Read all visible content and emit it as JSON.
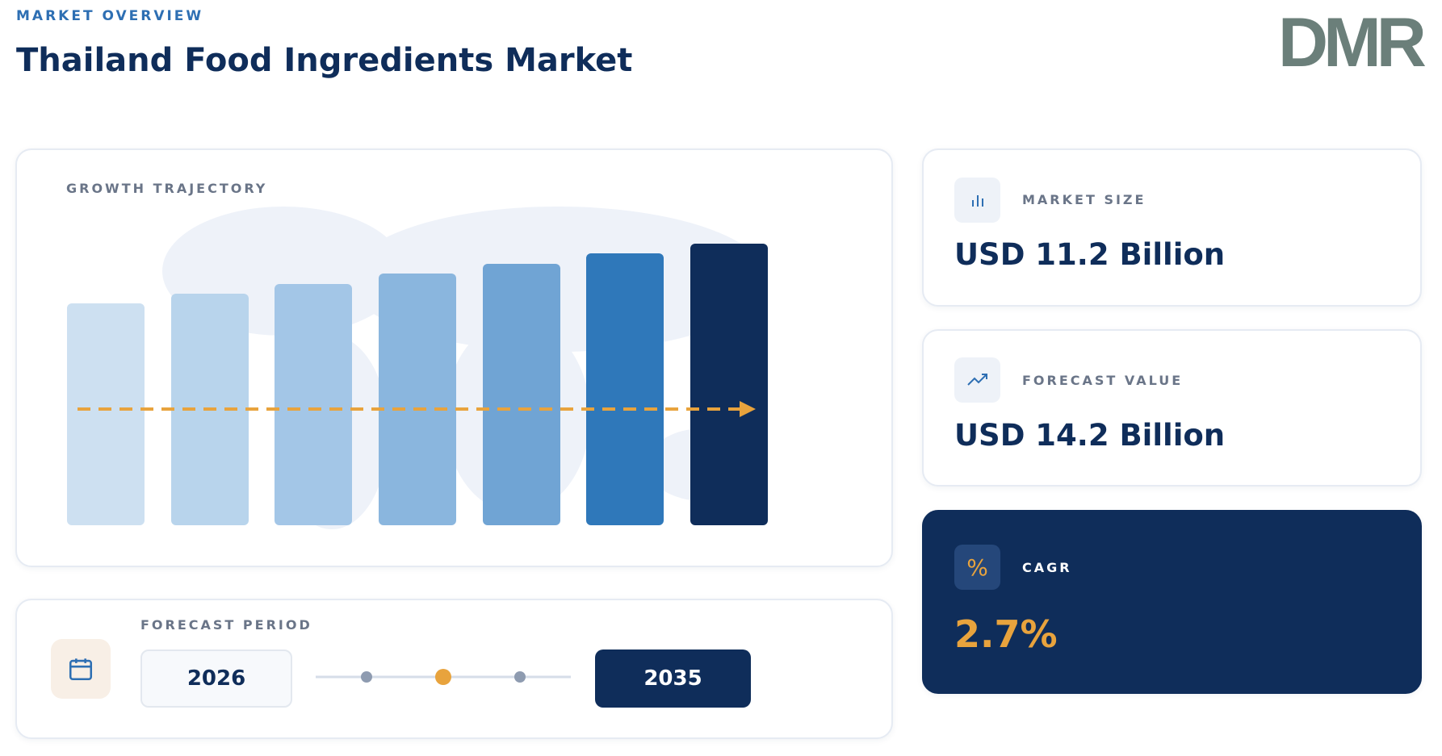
{
  "header": {
    "eyebrow": "MARKET OVERVIEW",
    "title": "Thailand Food Ingredients Market",
    "logo": "DMR"
  },
  "growth": {
    "label": "GROWTH TRAJECTORY"
  },
  "forecast_period": {
    "label": "FORECAST PERIOD",
    "start": "2026",
    "end": "2035"
  },
  "metrics": [
    {
      "label": "MARKET SIZE",
      "value": "USD 11.2 Billion"
    },
    {
      "label": "FORECAST VALUE",
      "value": "USD 14.2 Billion"
    },
    {
      "label": "CAGR",
      "value": "2.7%"
    }
  ]
}
